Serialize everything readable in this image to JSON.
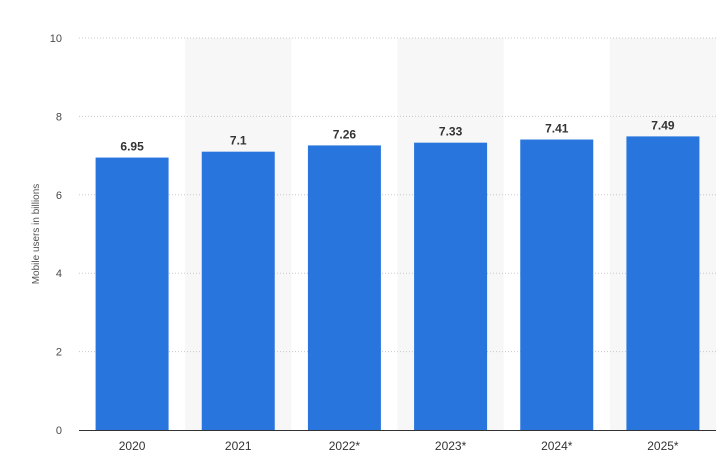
{
  "chart_data": {
    "type": "bar",
    "title": "",
    "xlabel": "",
    "ylabel": "Mobile users in billions",
    "ylim": [
      0,
      10
    ],
    "yticks": [
      0,
      2,
      4,
      6,
      8,
      10
    ],
    "categories": [
      "2020",
      "2021",
      "2022*",
      "2023*",
      "2024*",
      "2025*"
    ],
    "values": [
      6.95,
      7.1,
      7.26,
      7.33,
      7.41,
      7.49
    ],
    "value_labels": [
      "6.95",
      "7.1",
      "7.26",
      "7.33",
      "7.41",
      "7.49"
    ],
    "grid": true,
    "bar_color": "#2876dd",
    "band_color": "#f7f7f7",
    "grid_color": "#c8c8c8"
  }
}
